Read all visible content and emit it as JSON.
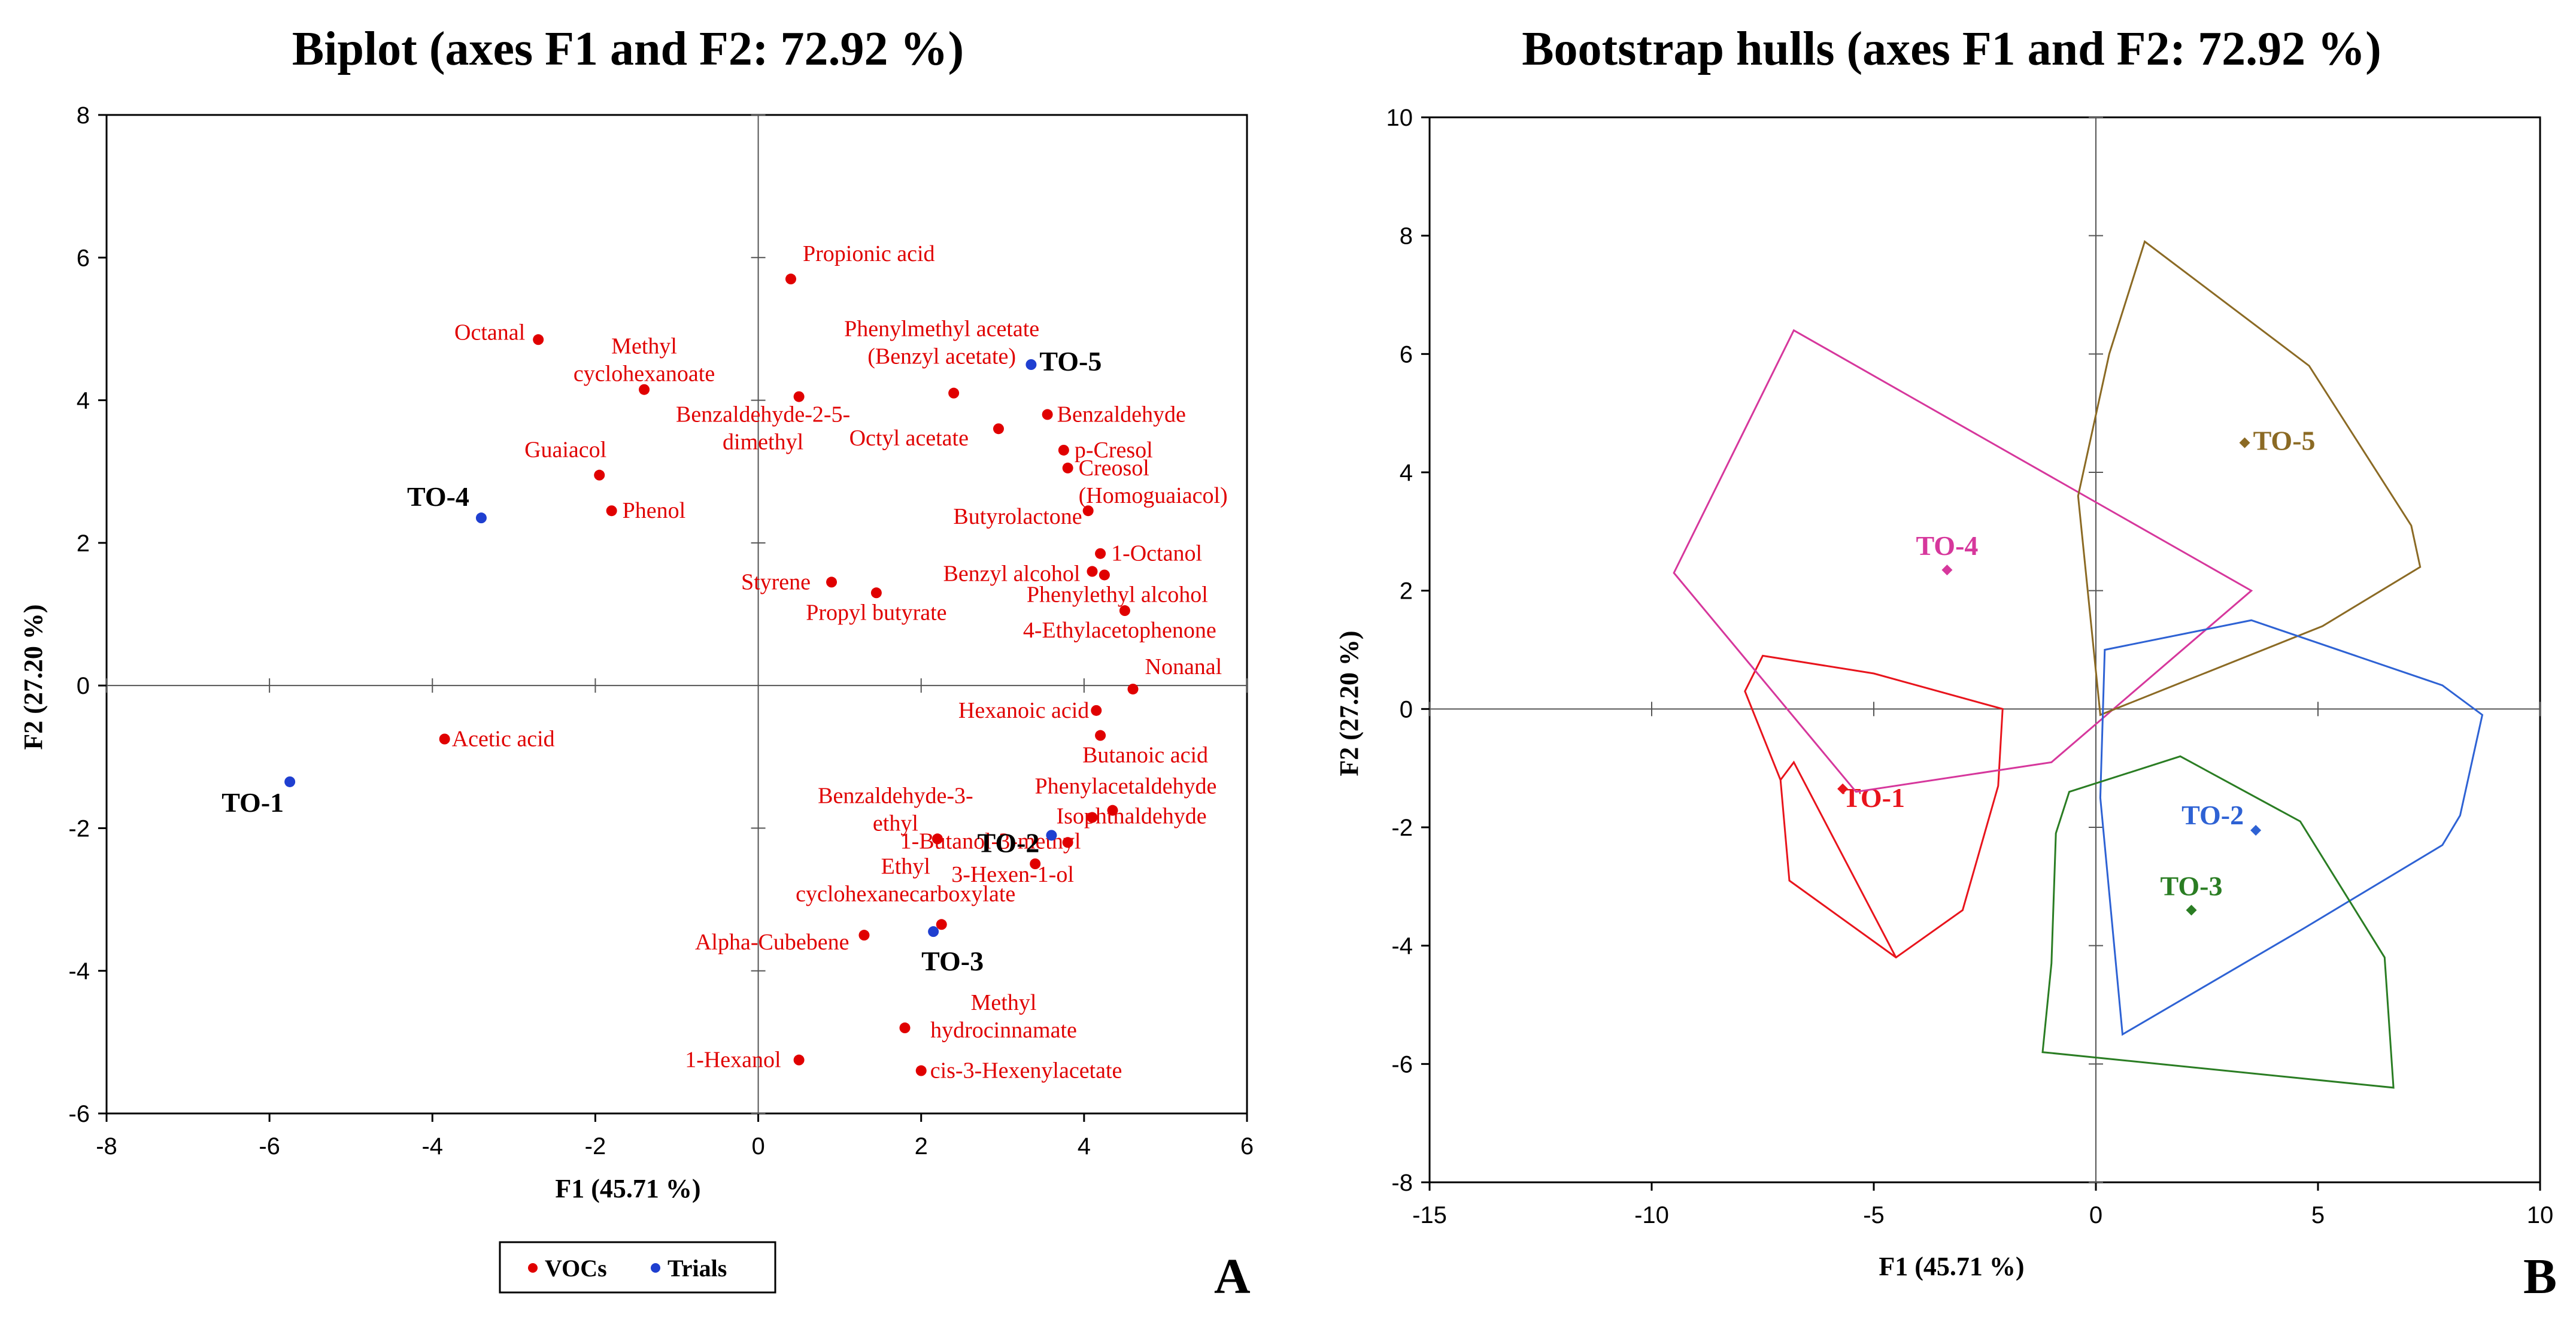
{
  "chart_data": [
    {
      "type": "scatter",
      "title": "Biplot (axes F1 and F2: 72.92 %)",
      "xlabel": "F1 (45.71 %)",
      "ylabel": "F2 (27.20 %)",
      "xlim": [
        -8,
        6
      ],
      "ylim": [
        -6,
        8
      ],
      "xticks": [
        "-8",
        "-6",
        "-4",
        "-2",
        "0",
        "2",
        "4",
        "6"
      ],
      "yticks": [
        "-6",
        "-4",
        "-2",
        "0",
        "2",
        "4",
        "6",
        "8"
      ],
      "panel_label": "A",
      "legend": {
        "placement": "bottom-center",
        "items": [
          {
            "label": "VOCs",
            "color": "#e00000"
          },
          {
            "label": "Trials",
            "color": "#1f3fd0"
          }
        ]
      },
      "series": [
        {
          "name": "VOCs",
          "color": "#e00000",
          "points": [
            {
              "label": "Propionic acid",
              "x": 0.4,
              "y": 5.7
            },
            {
              "label": "Octanal",
              "x": -2.7,
              "y": 4.85
            },
            {
              "label": "Methyl cyclohexanoate",
              "x": -1.4,
              "y": 4.15
            },
            {
              "label": "Phenylmethyl acetate (Benzyl acetate)",
              "x": 2.4,
              "y": 4.1
            },
            {
              "label": "Benzaldehyde-2-5-dimethyl",
              "x": 0.5,
              "y": 4.05
            },
            {
              "label": "Benzaldehyde",
              "x": 3.55,
              "y": 3.8
            },
            {
              "label": "Octyl acetate",
              "x": 2.95,
              "y": 3.6
            },
            {
              "label": "p-Cresol",
              "x": 3.75,
              "y": 3.3
            },
            {
              "label": "Creosol (Homoguaiacol)",
              "x": 3.8,
              "y": 3.05
            },
            {
              "label": "Guaiacol",
              "x": -1.95,
              "y": 2.95
            },
            {
              "label": "Phenol",
              "x": -1.8,
              "y": 2.45
            },
            {
              "label": "Butyrolactone",
              "x": 4.05,
              "y": 2.45
            },
            {
              "label": "1-Octanol",
              "x": 4.2,
              "y": 1.85
            },
            {
              "label": "Benzyl alcohol",
              "x": 4.1,
              "y": 1.6
            },
            {
              "label": "Phenylethyl alcohol",
              "x": 4.25,
              "y": 1.55
            },
            {
              "label": "Styrene",
              "x": 0.9,
              "y": 1.45
            },
            {
              "label": "Propyl butyrate",
              "x": 1.45,
              "y": 1.3
            },
            {
              "label": "4-Ethylacetophenone",
              "x": 4.5,
              "y": 1.05
            },
            {
              "label": "Nonanal",
              "x": 4.6,
              "y": -0.05
            },
            {
              "label": "Hexanoic acid",
              "x": 4.15,
              "y": -0.35
            },
            {
              "label": "Acetic acid",
              "x": -3.85,
              "y": -0.75
            },
            {
              "label": "Butanoic acid",
              "x": 4.2,
              "y": -0.7
            },
            {
              "label": "Phenylacetaldehyde",
              "x": 4.35,
              "y": -1.75
            },
            {
              "label": "Isophthaldehyde",
              "x": 4.1,
              "y": -1.85
            },
            {
              "label": "Benzaldehyde-3-ethyl",
              "x": 2.2,
              "y": -2.15
            },
            {
              "label": "1-Butanol-3-methyl",
              "x": 3.8,
              "y": -2.2
            },
            {
              "label": "3-Hexen-1-ol",
              "x": 3.4,
              "y": -2.5
            },
            {
              "label": "Ethyl cyclohexanecarboxylate",
              "x": 2.25,
              "y": -3.35
            },
            {
              "label": "Alpha-Cubebene",
              "x": 1.3,
              "y": -3.5
            },
            {
              "label": "Methyl hydrocinnamate",
              "x": 1.8,
              "y": -4.8
            },
            {
              "label": "1-Hexanol",
              "x": 0.5,
              "y": -5.25
            },
            {
              "label": "cis-3-Hexenylacetate",
              "x": 2.0,
              "y": -5.4
            }
          ]
        },
        {
          "name": "Trials",
          "color": "#1f3fd0",
          "points": [
            {
              "label": "TO-5",
              "x": 3.35,
              "y": 4.5
            },
            {
              "label": "TO-4",
              "x": -3.4,
              "y": 2.35
            },
            {
              "label": "TO-1",
              "x": -5.75,
              "y": -1.35
            },
            {
              "label": "TO-2",
              "x": 3.6,
              "y": -2.1
            },
            {
              "label": "TO-3",
              "x": 2.15,
              "y": -3.45
            }
          ]
        }
      ]
    },
    {
      "type": "scatter",
      "subtype": "convex-hulls",
      "title": "Bootstrap hulls (axes F1 and F2: 72.92 %)",
      "xlabel": "F1 (45.71 %)",
      "ylabel": "F2 (27.20 %)",
      "xlim": [
        -15,
        10
      ],
      "ylim": [
        -8,
        10
      ],
      "xticks": [
        "-15",
        "-10",
        "-5",
        "0",
        "5",
        "10"
      ],
      "yticks": [
        "-8",
        "-6",
        "-4",
        "-2",
        "0",
        "2",
        "4",
        "6",
        "8",
        "10"
      ],
      "panel_label": "B",
      "groups": [
        {
          "name": "TO-1",
          "color": "#e8141c",
          "centroid": [
            -5.7,
            -1.35
          ],
          "hull": [
            [
              -7.5,
              0.9
            ],
            [
              -5,
              0.6
            ],
            [
              -2.1,
              0
            ],
            [
              -2.2,
              -1.3
            ],
            [
              -3,
              -3.4
            ],
            [
              -4.5,
              -4.2
            ],
            [
              -6.9,
              -2.9
            ],
            [
              -7.1,
              -1.2
            ],
            [
              -7.9,
              0.3
            ]
          ],
          "inner": [
            [
              -7.1,
              -1.2
            ],
            [
              -6.8,
              -0.9
            ],
            [
              -4.5,
              -4.2
            ]
          ]
        },
        {
          "name": "TO-4",
          "color": "#d6379c",
          "centroid": [
            -3.35,
            2.35
          ],
          "hull": [
            [
              -6.8,
              6.4
            ],
            [
              3.5,
              2
            ],
            [
              -1,
              -0.9
            ],
            [
              -5.4,
              -1.4
            ],
            [
              -9.5,
              2.3
            ]
          ]
        },
        {
          "name": "TO-5",
          "color": "#8b6a24",
          "centroid": [
            3.35,
            4.5
          ],
          "hull": [
            [
              1.1,
              7.9
            ],
            [
              4.8,
              5.8
            ],
            [
              7.1,
              3.1
            ],
            [
              7.3,
              2.4
            ],
            [
              5.1,
              1.4
            ],
            [
              0.1,
              -0.1
            ],
            [
              -0.4,
              3.6
            ],
            [
              0.3,
              6
            ]
          ]
        },
        {
          "name": "TO-2",
          "color": "#2e62d4",
          "centroid": [
            3.6,
            -2.05
          ],
          "hull": [
            [
              0.2,
              1
            ],
            [
              3.5,
              1.5
            ],
            [
              7.8,
              0.4
            ],
            [
              8.7,
              -0.1
            ],
            [
              8.2,
              -1.8
            ],
            [
              7.8,
              -2.3
            ],
            [
              4.7,
              -3.7
            ],
            [
              0.6,
              -5.5
            ],
            [
              0.1,
              -1.5
            ]
          ]
        },
        {
          "name": "TO-3",
          "color": "#2a7d23",
          "centroid": [
            2.15,
            -3.4
          ],
          "hull": [
            [
              -0.6,
              -1.4
            ],
            [
              1.9,
              -0.8
            ],
            [
              4.6,
              -1.9
            ],
            [
              6.5,
              -4.2
            ],
            [
              6.7,
              -6.4
            ],
            [
              -1.2,
              -5.8
            ],
            [
              -1,
              -4.3
            ],
            [
              -0.9,
              -2.1
            ]
          ]
        }
      ]
    }
  ]
}
